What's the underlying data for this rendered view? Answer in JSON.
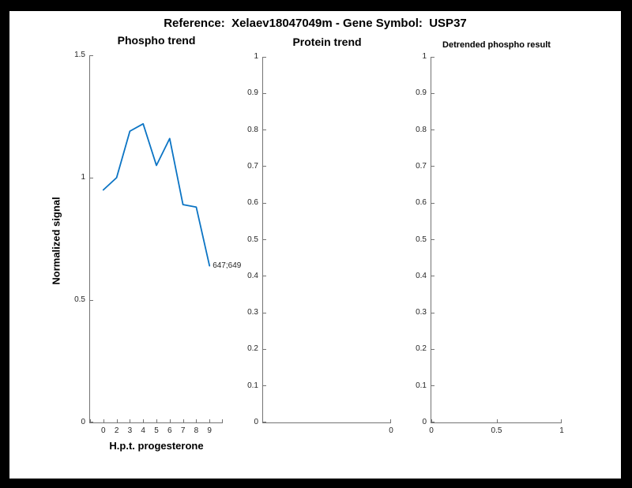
{
  "figure_title": "Reference:  Xelaev18047049m - Gene Symbol:  USP37",
  "colors": {
    "frame_bg": "#000000",
    "figure_bg": "#ffffff",
    "line": "#0b74c4",
    "axis": "#737373",
    "tick_label": "#262626",
    "text": "#000000"
  },
  "chart_data": [
    {
      "type": "line",
      "title": "Phospho trend",
      "xlabel": "H.p.t. progesterone",
      "ylabel": "Normalized signal",
      "categories": [
        "0",
        "2",
        "3",
        "4",
        "5",
        "6",
        "7",
        "8",
        "9"
      ],
      "values": [
        0.95,
        1.0,
        1.19,
        1.22,
        1.05,
        1.16,
        0.89,
        0.88,
        0.64
      ],
      "ylim": [
        0,
        1.5
      ],
      "yticks": [
        0,
        0.5,
        1,
        1.5
      ],
      "xticks": [
        {
          "f": 0.0,
          "label": ""
        },
        {
          "f": 0.1,
          "label": "0"
        },
        {
          "f": 0.2,
          "label": "2"
        },
        {
          "f": 0.3,
          "label": "3"
        },
        {
          "f": 0.4,
          "label": "4"
        },
        {
          "f": 0.5,
          "label": "5"
        },
        {
          "f": 0.6,
          "label": "6"
        },
        {
          "f": 0.7,
          "label": "7"
        },
        {
          "f": 0.8,
          "label": "8"
        },
        {
          "f": 0.9,
          "label": "9"
        },
        {
          "f": 1.0,
          "label": ""
        }
      ],
      "annotation": {
        "text": "647;649",
        "point_index": 8
      },
      "grid": false,
      "legend": null
    },
    {
      "type": "line",
      "title": "Protein trend",
      "xlabel": "",
      "ylabel": "",
      "categories": [],
      "values": [],
      "ylim": [
        0,
        1
      ],
      "yticks": [
        0,
        0.1,
        0.2,
        0.3,
        0.4,
        0.5,
        0.6,
        0.7,
        0.8,
        0.9,
        1
      ],
      "xticks": [
        {
          "f": 1.0,
          "label": "0"
        }
      ],
      "grid": false,
      "legend": null
    },
    {
      "type": "line",
      "title": "Detrended phospho result",
      "xlabel": "",
      "ylabel": "",
      "categories": [],
      "values": [],
      "ylim": [
        0,
        1
      ],
      "yticks": [
        0,
        0.1,
        0.2,
        0.3,
        0.4,
        0.5,
        0.6,
        0.7,
        0.8,
        0.9,
        1
      ],
      "xticks": [
        {
          "f": 0.0,
          "label": "0"
        },
        {
          "f": 0.5,
          "label": "0.5"
        },
        {
          "f": 1.0,
          "label": "1"
        }
      ],
      "grid": false,
      "legend": null
    }
  ]
}
